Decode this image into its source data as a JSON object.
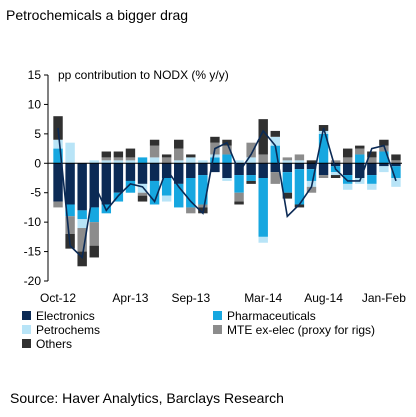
{
  "title": "Petrochemicals a bigger drag",
  "source": "Source: Haver Analytics, Barclays Research",
  "chart_data": {
    "type": "bar",
    "stacked": true,
    "ylabel": "pp contribution to NODX (% y/y)",
    "ylim": [
      -20,
      15
    ],
    "yticks": [
      15,
      10,
      5,
      0,
      -5,
      -10,
      -15,
      -20
    ],
    "x": [
      "Oct-12",
      "Nov-12",
      "Dec-12",
      "Jan-13",
      "Feb-13",
      "Mar-13",
      "Apr-13",
      "May-13",
      "Jun-13",
      "Jul-13",
      "Aug-13",
      "Sep-13",
      "Oct-13",
      "Nov-13",
      "Dec-13",
      "Jan-14",
      "Feb-14",
      "Mar-14",
      "Apr-14",
      "May-14",
      "Jun-14",
      "Jul-14",
      "Aug-14",
      "Sep-14",
      "Oct-14",
      "Nov-14",
      "Dec-14",
      "Jan-15",
      "Feb-15"
    ],
    "xtick_labels": [
      "Oct-12",
      "Apr-13",
      "Sep-13",
      "Mar-14",
      "Aug-14",
      "Jan-Feb"
    ],
    "xtick_indices": [
      0,
      6,
      11,
      17,
      22,
      27
    ],
    "series": [
      {
        "name": "Electronics",
        "color": "#0b2a55",
        "values": [
          -6.5,
          -7.0,
          -8.0,
          -7.5,
          -7.0,
          -5.0,
          -3.0,
          -3.5,
          -3.0,
          -2.5,
          -3.5,
          -2.5,
          -2.0,
          -1.5,
          -2.5,
          -2.0,
          -2.0,
          -2.5,
          -1.5,
          -1.5,
          -1.0,
          -1.0,
          -2.0,
          -0.5,
          -2.0,
          -2.5,
          -2.0,
          -0.5,
          -0.5
        ]
      },
      {
        "name": "Pharmaceuticals",
        "color": "#16a7e0",
        "values": [
          2.5,
          -2.0,
          -1.5,
          -2.5,
          -1.5,
          -1.5,
          -2.0,
          1.0,
          -4.0,
          -3.0,
          -4.0,
          -5.0,
          -5.0,
          1.0,
          1.5,
          -3.0,
          -1.0,
          -10.0,
          3.0,
          -3.5,
          -6.0,
          -2.0,
          5.0,
          -1.0,
          -1.5,
          1.5,
          -1.5,
          2.0,
          -2.0
        ]
      },
      {
        "name": "Petrochems",
        "color": "#b8e4f7",
        "values": [
          1.5,
          3.5,
          -1.5,
          0.5,
          0.5,
          0.5,
          0.5,
          -1.5,
          1.0,
          -1.0,
          0.5,
          1.0,
          0.5,
          0.5,
          -0.5,
          0.5,
          1.0,
          -1.0,
          1.5,
          0.5,
          0.5,
          -1.0,
          0.5,
          -0.5,
          -1.0,
          -1.0,
          -1.0,
          -1.0,
          -1.5
        ]
      },
      {
        "name": "MTE ex-elec (proxy for rigs)",
        "color": "#8c8c8c",
        "values": [
          -1.0,
          -3.0,
          -4.0,
          -4.0,
          0.5,
          0.5,
          0.5,
          -0.5,
          2.0,
          1.0,
          2.0,
          -1.0,
          -0.5,
          2.0,
          1.5,
          -1.5,
          2.5,
          1.5,
          -2.0,
          0.5,
          1.0,
          -1.0,
          -0.5,
          0.5,
          1.0,
          1.0,
          1.0,
          1.0,
          0.5
        ]
      },
      {
        "name": "Others",
        "color": "#303030",
        "values": [
          4.0,
          -2.5,
          -2.5,
          -2.0,
          1.0,
          1.0,
          1.5,
          -1.0,
          1.0,
          0.5,
          1.5,
          0.5,
          -1.0,
          1.0,
          1.0,
          -0.5,
          -0.5,
          6.0,
          1.0,
          -1.0,
          -0.5,
          0.5,
          1.0,
          -0.5,
          1.5,
          0.5,
          1.0,
          1.0,
          1.0
        ]
      }
    ],
    "total_line": {
      "name": "Total",
      "color": "#0b2a55",
      "values": [
        6.0,
        -14.0,
        -16.0,
        -3.5,
        -8.0,
        -5.5,
        -3.5,
        -4.0,
        -6.5,
        -1.0,
        -4.0,
        -6.5,
        -8.5,
        2.5,
        3.5,
        -1.5,
        1.5,
        5.5,
        3.0,
        -9.0,
        -7.0,
        -4.0,
        6.0,
        -1.0,
        -3.0,
        -3.0,
        2.5,
        3.0,
        -3.0
      ]
    },
    "legend": {
      "placement": "bottom",
      "columns": 2
    },
    "grid": false
  }
}
